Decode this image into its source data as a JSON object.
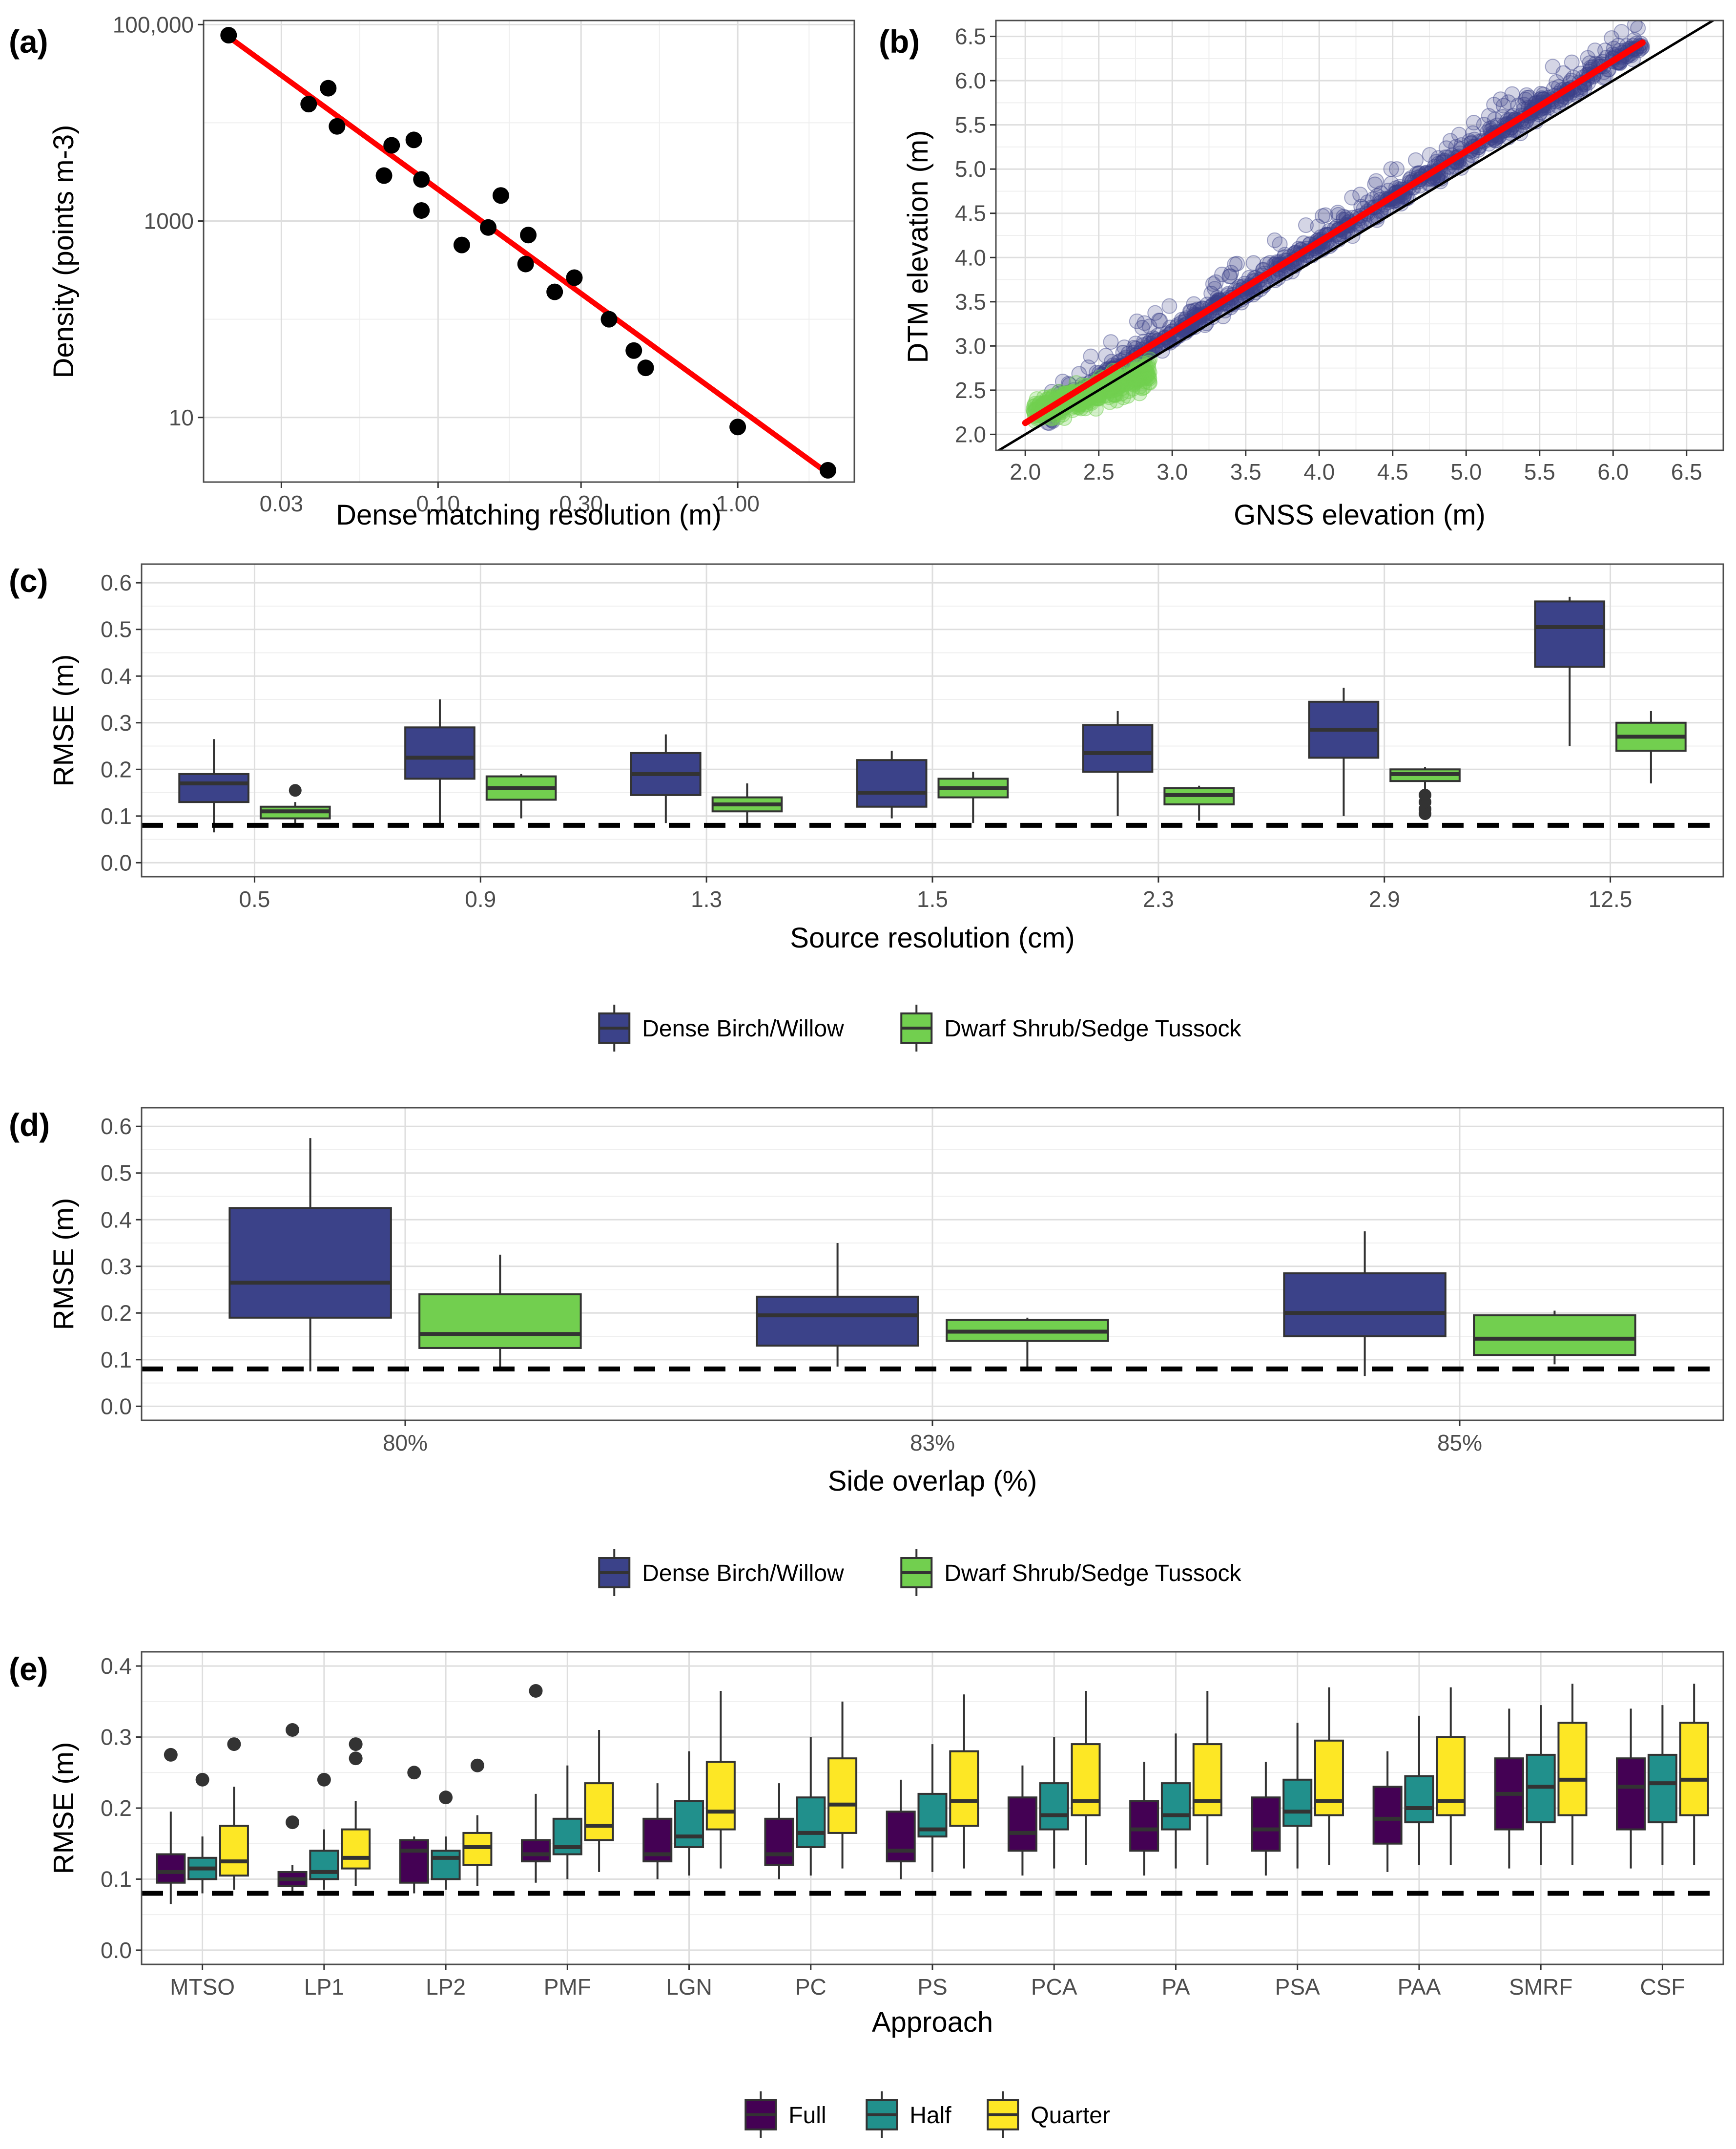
{
  "colors": {
    "dense": "#3b4289",
    "dwarf": "#72cf4f",
    "full": "#440154",
    "half": "#21908c",
    "quarter": "#fde725",
    "fit_line": "#ff0000",
    "grid_major": "#dedede",
    "grid_minor": "#efefef",
    "panel_border": "#4d4d4d"
  },
  "chart_data": [
    {
      "id": "a",
      "panel_label": "(a)",
      "type": "scatter",
      "xlabel": "Dense matching resolution (m)",
      "ylabel": "Density (points m-3)",
      "x_scale": "log",
      "y_scale": "log",
      "xlim": [
        0.0165,
        2.45
      ],
      "ylim": [
        2.2,
        110000
      ],
      "x_ticks": [
        0.03,
        0.1,
        0.3,
        1.0
      ],
      "x_tick_labels": [
        "0.03",
        "0.10",
        "0.30",
        "1.00"
      ],
      "y_ticks": [
        10,
        1000,
        100000
      ],
      "y_tick_labels": [
        "10",
        "1000",
        "100,000"
      ],
      "points": [
        {
          "x": 0.02,
          "y": 78000
        },
        {
          "x": 0.037,
          "y": 15500
        },
        {
          "x": 0.043,
          "y": 22500
        },
        {
          "x": 0.046,
          "y": 9200
        },
        {
          "x": 0.066,
          "y": 2900
        },
        {
          "x": 0.07,
          "y": 5900
        },
        {
          "x": 0.083,
          "y": 6700
        },
        {
          "x": 0.088,
          "y": 1280
        },
        {
          "x": 0.088,
          "y": 2650
        },
        {
          "x": 0.12,
          "y": 570
        },
        {
          "x": 0.147,
          "y": 860
        },
        {
          "x": 0.162,
          "y": 1820
        },
        {
          "x": 0.196,
          "y": 365
        },
        {
          "x": 0.2,
          "y": 720
        },
        {
          "x": 0.245,
          "y": 190
        },
        {
          "x": 0.285,
          "y": 265
        },
        {
          "x": 0.372,
          "y": 100
        },
        {
          "x": 0.45,
          "y": 48
        },
        {
          "x": 0.493,
          "y": 32
        },
        {
          "x": 1.0,
          "y": 8
        },
        {
          "x": 2.0,
          "y": 2.9
        }
      ],
      "fit_line": {
        "x": [
          0.02,
          2.0
        ],
        "y": [
          75000,
          2.7
        ]
      },
      "grid": true
    },
    {
      "id": "b",
      "panel_label": "(b)",
      "type": "scatter",
      "xlabel": "GNSS elevation (m)",
      "ylabel": "DTM elevation (m)",
      "xlim": [
        1.8,
        6.75
      ],
      "ylim": [
        1.82,
        6.68
      ],
      "x_ticks": [
        2.0,
        2.5,
        3.0,
        3.5,
        4.0,
        4.5,
        5.0,
        5.5,
        6.0,
        6.5
      ],
      "x_tick_labels": [
        "2.0",
        "2.5",
        "3.0",
        "3.5",
        "4.0",
        "4.5",
        "5.0",
        "5.5",
        "6.0",
        "6.5"
      ],
      "y_ticks": [
        2.0,
        2.5,
        3.0,
        3.5,
        4.0,
        4.5,
        5.0,
        5.5,
        6.0,
        6.5
      ],
      "y_tick_labels": [
        "2.0",
        "2.5",
        "3.0",
        "3.5",
        "4.0",
        "4.5",
        "5.0",
        "5.5",
        "6.0",
        "6.5"
      ],
      "point_clouds": [
        {
          "group": "Dense Birch/Willow",
          "x_range": [
            2.15,
            6.2
          ],
          "offset_from_fit": [
            -0.3,
            0.3
          ],
          "upper_spread": 0.55
        },
        {
          "group": "Dwarf Shrub/Sedge Tussock",
          "x_range": [
            2.05,
            2.85
          ],
          "y_range": [
            2.15,
            2.95
          ]
        }
      ],
      "fit_line": {
        "x": [
          2.0,
          6.2
        ],
        "y": [
          2.13,
          6.43
        ]
      },
      "reference_line": {
        "slope": 1,
        "intercept": 0
      },
      "grid": true
    },
    {
      "id": "c",
      "panel_label": "(c)",
      "type": "box",
      "xlabel": "Source resolution (cm)",
      "ylabel": "RMSE (m)",
      "ylim": [
        -0.03,
        0.64
      ],
      "y_ticks": [
        0.0,
        0.1,
        0.2,
        0.3,
        0.4,
        0.5,
        0.6
      ],
      "y_tick_labels": [
        "0.0",
        "0.1",
        "0.2",
        "0.3",
        "0.4",
        "0.5",
        "0.6"
      ],
      "categories": [
        "0.5",
        "0.9",
        "1.3",
        "1.5",
        "2.3",
        "2.9",
        "12.5"
      ],
      "reference_line": 0.08,
      "legend": {
        "position": "bottom",
        "entries": [
          "Dense Birch/Willow",
          "Dwarf Shrub/Sedge Tussock"
        ]
      },
      "series": [
        {
          "name": "Dense Birch/Willow",
          "color_key": "dense",
          "boxes": [
            {
              "min": 0.065,
              "q1": 0.13,
              "median": 0.17,
              "q3": 0.19,
              "max": 0.265,
              "outliers": []
            },
            {
              "min": 0.08,
              "q1": 0.18,
              "median": 0.225,
              "q3": 0.29,
              "max": 0.35,
              "outliers": []
            },
            {
              "min": 0.085,
              "q1": 0.145,
              "median": 0.19,
              "q3": 0.235,
              "max": 0.275,
              "outliers": []
            },
            {
              "min": 0.095,
              "q1": 0.12,
              "median": 0.15,
              "q3": 0.22,
              "max": 0.24,
              "outliers": []
            },
            {
              "min": 0.1,
              "q1": 0.195,
              "median": 0.235,
              "q3": 0.295,
              "max": 0.325,
              "outliers": []
            },
            {
              "min": 0.1,
              "q1": 0.225,
              "median": 0.285,
              "q3": 0.345,
              "max": 0.375,
              "outliers": []
            },
            {
              "min": 0.25,
              "q1": 0.42,
              "median": 0.505,
              "q3": 0.56,
              "max": 0.57,
              "outliers": []
            }
          ]
        },
        {
          "name": "Dwarf Shrub/Sedge Tussock",
          "color_key": "dwarf",
          "boxes": [
            {
              "min": 0.085,
              "q1": 0.095,
              "median": 0.11,
              "q3": 0.12,
              "max": 0.13,
              "outliers": [
                0.155
              ]
            },
            {
              "min": 0.095,
              "q1": 0.135,
              "median": 0.16,
              "q3": 0.185,
              "max": 0.19,
              "outliers": []
            },
            {
              "min": 0.085,
              "q1": 0.11,
              "median": 0.125,
              "q3": 0.14,
              "max": 0.17,
              "outliers": []
            },
            {
              "min": 0.085,
              "q1": 0.14,
              "median": 0.16,
              "q3": 0.18,
              "max": 0.195,
              "outliers": []
            },
            {
              "min": 0.09,
              "q1": 0.125,
              "median": 0.145,
              "q3": 0.16,
              "max": 0.165,
              "outliers": []
            },
            {
              "min": 0.15,
              "q1": 0.175,
              "median": 0.19,
              "q3": 0.2,
              "max": 0.205,
              "outliers": [
                0.105,
                0.115,
                0.13,
                0.145
              ]
            },
            {
              "min": 0.17,
              "q1": 0.24,
              "median": 0.27,
              "q3": 0.3,
              "max": 0.325,
              "outliers": []
            }
          ]
        }
      ]
    },
    {
      "id": "d",
      "panel_label": "(d)",
      "type": "box",
      "xlabel": "Side overlap (%)",
      "ylabel": "RMSE (m)",
      "ylim": [
        -0.03,
        0.64
      ],
      "y_ticks": [
        0.0,
        0.1,
        0.2,
        0.3,
        0.4,
        0.5,
        0.6
      ],
      "y_tick_labels": [
        "0.0",
        "0.1",
        "0.2",
        "0.3",
        "0.4",
        "0.5",
        "0.6"
      ],
      "categories": [
        "80%",
        "83%",
        "85%"
      ],
      "reference_line": 0.08,
      "legend": {
        "position": "bottom",
        "entries": [
          "Dense Birch/Willow",
          "Dwarf Shrub/Sedge Tussock"
        ]
      },
      "series": [
        {
          "name": "Dense Birch/Willow",
          "color_key": "dense",
          "boxes": [
            {
              "min": 0.075,
              "q1": 0.19,
              "median": 0.265,
              "q3": 0.425,
              "max": 0.575,
              "outliers": []
            },
            {
              "min": 0.085,
              "q1": 0.13,
              "median": 0.195,
              "q3": 0.235,
              "max": 0.35,
              "outliers": []
            },
            {
              "min": 0.065,
              "q1": 0.15,
              "median": 0.2,
              "q3": 0.285,
              "max": 0.375,
              "outliers": []
            }
          ]
        },
        {
          "name": "Dwarf Shrub/Sedge Tussock",
          "color_key": "dwarf",
          "boxes": [
            {
              "min": 0.085,
              "q1": 0.125,
              "median": 0.155,
              "q3": 0.24,
              "max": 0.325,
              "outliers": []
            },
            {
              "min": 0.085,
              "q1": 0.14,
              "median": 0.16,
              "q3": 0.185,
              "max": 0.19,
              "outliers": []
            },
            {
              "min": 0.09,
              "q1": 0.11,
              "median": 0.145,
              "q3": 0.195,
              "max": 0.205,
              "outliers": []
            }
          ]
        }
      ]
    },
    {
      "id": "e",
      "panel_label": "(e)",
      "type": "box",
      "xlabel": "Approach",
      "ylabel": "RMSE (m)",
      "ylim": [
        -0.02,
        0.42
      ],
      "y_ticks": [
        0.0,
        0.1,
        0.2,
        0.3,
        0.4
      ],
      "y_tick_labels": [
        "0.0",
        "0.1",
        "0.2",
        "0.3",
        "0.4"
      ],
      "categories": [
        "MTSO",
        "LP1",
        "LP2",
        "PMF",
        "LGN",
        "PC",
        "PS",
        "PCA",
        "PA",
        "PSA",
        "PAA",
        "SMRF",
        "CSF"
      ],
      "reference_line": 0.08,
      "legend": {
        "position": "bottom",
        "entries": [
          "Full",
          "Half",
          "Quarter"
        ]
      },
      "series": [
        {
          "name": "Full",
          "color_key": "full",
          "boxes": [
            {
              "min": 0.065,
              "q1": 0.095,
              "median": 0.11,
              "q3": 0.135,
              "max": 0.195,
              "outliers": [
                0.275
              ]
            },
            {
              "min": 0.08,
              "q1": 0.09,
              "median": 0.1,
              "q3": 0.11,
              "max": 0.12,
              "outliers": [
                0.18,
                0.31
              ]
            },
            {
              "min": 0.08,
              "q1": 0.095,
              "median": 0.14,
              "q3": 0.155,
              "max": 0.16,
              "outliers": [
                0.25
              ]
            },
            {
              "min": 0.095,
              "q1": 0.125,
              "median": 0.135,
              "q3": 0.155,
              "max": 0.22,
              "outliers": [
                0.365
              ]
            },
            {
              "min": 0.1,
              "q1": 0.125,
              "median": 0.135,
              "q3": 0.185,
              "max": 0.235,
              "outliers": []
            },
            {
              "min": 0.1,
              "q1": 0.12,
              "median": 0.135,
              "q3": 0.185,
              "max": 0.235,
              "outliers": []
            },
            {
              "min": 0.1,
              "q1": 0.125,
              "median": 0.14,
              "q3": 0.195,
              "max": 0.24,
              "outliers": []
            },
            {
              "min": 0.105,
              "q1": 0.14,
              "median": 0.165,
              "q3": 0.215,
              "max": 0.26,
              "outliers": []
            },
            {
              "min": 0.105,
              "q1": 0.14,
              "median": 0.17,
              "q3": 0.21,
              "max": 0.265,
              "outliers": []
            },
            {
              "min": 0.105,
              "q1": 0.14,
              "median": 0.17,
              "q3": 0.215,
              "max": 0.265,
              "outliers": []
            },
            {
              "min": 0.11,
              "q1": 0.15,
              "median": 0.185,
              "q3": 0.23,
              "max": 0.28,
              "outliers": []
            },
            {
              "min": 0.115,
              "q1": 0.17,
              "median": 0.22,
              "q3": 0.27,
              "max": 0.34,
              "outliers": []
            },
            {
              "min": 0.115,
              "q1": 0.17,
              "median": 0.23,
              "q3": 0.27,
              "max": 0.34,
              "outliers": []
            }
          ]
        },
        {
          "name": "Half",
          "color_key": "half",
          "boxes": [
            {
              "min": 0.08,
              "q1": 0.1,
              "median": 0.115,
              "q3": 0.13,
              "max": 0.16,
              "outliers": [
                0.24
              ]
            },
            {
              "min": 0.085,
              "q1": 0.1,
              "median": 0.11,
              "q3": 0.14,
              "max": 0.17,
              "outliers": [
                0.24
              ]
            },
            {
              "min": 0.085,
              "q1": 0.1,
              "median": 0.13,
              "q3": 0.14,
              "max": 0.16,
              "outliers": [
                0.215
              ]
            },
            {
              "min": 0.1,
              "q1": 0.135,
              "median": 0.145,
              "q3": 0.185,
              "max": 0.26,
              "outliers": []
            },
            {
              "min": 0.105,
              "q1": 0.145,
              "median": 0.16,
              "q3": 0.21,
              "max": 0.28,
              "outliers": []
            },
            {
              "min": 0.105,
              "q1": 0.145,
              "median": 0.165,
              "q3": 0.215,
              "max": 0.3,
              "outliers": []
            },
            {
              "min": 0.11,
              "q1": 0.16,
              "median": 0.17,
              "q3": 0.22,
              "max": 0.29,
              "outliers": []
            },
            {
              "min": 0.115,
              "q1": 0.17,
              "median": 0.19,
              "q3": 0.235,
              "max": 0.3,
              "outliers": []
            },
            {
              "min": 0.115,
              "q1": 0.17,
              "median": 0.19,
              "q3": 0.235,
              "max": 0.305,
              "outliers": []
            },
            {
              "min": 0.115,
              "q1": 0.175,
              "median": 0.195,
              "q3": 0.24,
              "max": 0.32,
              "outliers": []
            },
            {
              "min": 0.12,
              "q1": 0.18,
              "median": 0.2,
              "q3": 0.245,
              "max": 0.33,
              "outliers": []
            },
            {
              "min": 0.12,
              "q1": 0.18,
              "median": 0.23,
              "q3": 0.275,
              "max": 0.345,
              "outliers": []
            },
            {
              "min": 0.12,
              "q1": 0.18,
              "median": 0.235,
              "q3": 0.275,
              "max": 0.345,
              "outliers": []
            }
          ]
        },
        {
          "name": "Quarter",
          "color_key": "quarter",
          "boxes": [
            {
              "min": 0.085,
              "q1": 0.105,
              "median": 0.125,
              "q3": 0.175,
              "max": 0.23,
              "outliers": [
                0.29
              ]
            },
            {
              "min": 0.09,
              "q1": 0.115,
              "median": 0.13,
              "q3": 0.17,
              "max": 0.21,
              "outliers": [
                0.27,
                0.29
              ]
            },
            {
              "min": 0.09,
              "q1": 0.12,
              "median": 0.145,
              "q3": 0.165,
              "max": 0.19,
              "outliers": [
                0.26
              ]
            },
            {
              "min": 0.11,
              "q1": 0.155,
              "median": 0.175,
              "q3": 0.235,
              "max": 0.31,
              "outliers": []
            },
            {
              "min": 0.115,
              "q1": 0.17,
              "median": 0.195,
              "q3": 0.265,
              "max": 0.365,
              "outliers": []
            },
            {
              "min": 0.115,
              "q1": 0.165,
              "median": 0.205,
              "q3": 0.27,
              "max": 0.35,
              "outliers": []
            },
            {
              "min": 0.115,
              "q1": 0.175,
              "median": 0.21,
              "q3": 0.28,
              "max": 0.36,
              "outliers": []
            },
            {
              "min": 0.12,
              "q1": 0.19,
              "median": 0.21,
              "q3": 0.29,
              "max": 0.365,
              "outliers": []
            },
            {
              "min": 0.12,
              "q1": 0.19,
              "median": 0.21,
              "q3": 0.29,
              "max": 0.365,
              "outliers": []
            },
            {
              "min": 0.12,
              "q1": 0.19,
              "median": 0.21,
              "q3": 0.295,
              "max": 0.37,
              "outliers": []
            },
            {
              "min": 0.12,
              "q1": 0.19,
              "median": 0.21,
              "q3": 0.3,
              "max": 0.37,
              "outliers": []
            },
            {
              "min": 0.12,
              "q1": 0.19,
              "median": 0.24,
              "q3": 0.32,
              "max": 0.375,
              "outliers": []
            },
            {
              "min": 0.12,
              "q1": 0.19,
              "median": 0.24,
              "q3": 0.32,
              "max": 0.375,
              "outliers": []
            }
          ]
        }
      ]
    }
  ]
}
